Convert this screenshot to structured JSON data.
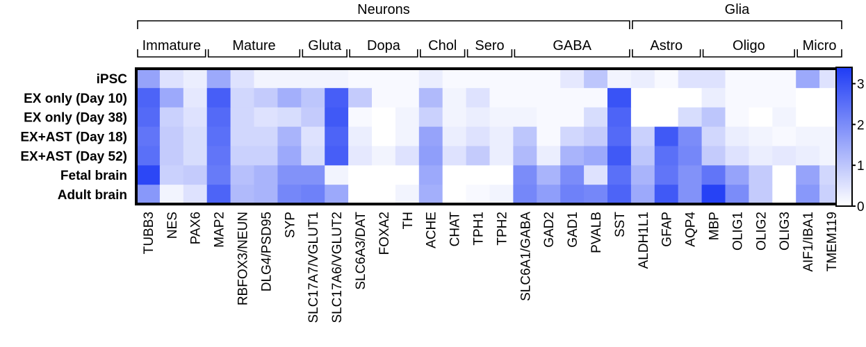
{
  "chart_data": {
    "type": "heatmap",
    "rows": [
      "iPSC",
      "EX only (Day 10)",
      "EX only (Day 38)",
      "EX+AST (Day 18)",
      "EX+AST (Day 52)",
      "Fetal brain",
      "Adult brain"
    ],
    "columns": [
      "TUBB3",
      "NES",
      "PAX6",
      "MAP2",
      "RBFOX3/NEUN",
      "DLG4/PSD95",
      "SYP",
      "SLC17A7/VGLUT1",
      "SLC17A6/VGLUT2",
      "SLC6A3/DAT",
      "FOXA2",
      "TH",
      "ACHE",
      "CHAT",
      "TPH1",
      "TPH2",
      "SLC6A1/GABA",
      "GAD2",
      "GAD1",
      "PVALB",
      "SST",
      "ALDH1L1",
      "GFAP",
      "AQP4",
      "MBP",
      "OLIG1",
      "OLIG2",
      "OLIG3",
      "AIF1/IBA1",
      "TMEM119"
    ],
    "values": [
      [
        1.6,
        0.5,
        0.3,
        1.5,
        0.5,
        0.2,
        0.2,
        0.2,
        0.2,
        0.1,
        0.1,
        0.1,
        0.3,
        0.1,
        0.1,
        0.1,
        0.1,
        0.1,
        0.4,
        1.0,
        0.2,
        0.3,
        0.1,
        0.5,
        0.5,
        0.1,
        0.1,
        0.1,
        1.5,
        0.5
      ],
      [
        2.7,
        1.5,
        0.4,
        2.8,
        0.7,
        0.9,
        1.4,
        1.0,
        2.8,
        0.9,
        0.1,
        0.1,
        1.2,
        0.2,
        0.5,
        0.1,
        0.1,
        0.1,
        0.1,
        0.1,
        3.0,
        0.0,
        0.0,
        0.0,
        0.3,
        0.1,
        0.1,
        0.1,
        0.0,
        0.0
      ],
      [
        2.6,
        0.8,
        0.5,
        2.6,
        0.7,
        0.5,
        0.6,
        0.9,
        2.9,
        0.1,
        0.0,
        0.2,
        0.8,
        0.2,
        0.3,
        0.2,
        0.2,
        0.1,
        0.1,
        0.6,
        2.7,
        0.0,
        0.0,
        0.6,
        1.0,
        0.1,
        0.0,
        0.2,
        0.0,
        0.0
      ],
      [
        2.4,
        0.9,
        0.6,
        2.5,
        0.7,
        0.7,
        1.3,
        0.5,
        2.7,
        0.3,
        0.0,
        0.2,
        1.6,
        0.3,
        0.5,
        0.3,
        1.0,
        0.1,
        0.7,
        0.9,
        2.6,
        0.8,
        2.9,
        2.0,
        0.7,
        0.3,
        0.2,
        0.1,
        0.2,
        0.2
      ],
      [
        2.5,
        0.9,
        0.6,
        2.4,
        0.8,
        0.8,
        1.5,
        0.6,
        2.8,
        0.4,
        0.2,
        0.5,
        1.7,
        0.5,
        0.9,
        0.3,
        1.2,
        0.3,
        1.3,
        1.5,
        2.9,
        1.0,
        2.5,
        2.1,
        0.9,
        0.5,
        0.3,
        0.4,
        0.3,
        0.2
      ],
      [
        3.2,
        0.8,
        0.9,
        2.3,
        1.1,
        1.3,
        1.9,
        1.9,
        0.2,
        0.0,
        0.0,
        0.0,
        1.5,
        0.0,
        0.0,
        0.0,
        2.0,
        1.3,
        2.0,
        0.5,
        2.5,
        1.3,
        2.4,
        1.9,
        2.4,
        1.6,
        0.9,
        0.0,
        1.6,
        0.7
      ],
      [
        1.8,
        0.2,
        0.5,
        2.7,
        1.2,
        1.3,
        2.1,
        2.2,
        1.5,
        0.0,
        0.0,
        0.2,
        1.4,
        0.0,
        0.1,
        0.2,
        2.1,
        1.7,
        2.2,
        2.1,
        2.7,
        1.5,
        2.9,
        1.9,
        3.3,
        2.0,
        0.9,
        0.0,
        1.8,
        0.8
      ]
    ],
    "column_groups": [
      {
        "label": "Immature",
        "start": 0,
        "end": 2
      },
      {
        "label": "Mature",
        "start": 3,
        "end": 6
      },
      {
        "label": "Gluta",
        "start": 7,
        "end": 8
      },
      {
        "label": "Dopa",
        "start": 9,
        "end": 11
      },
      {
        "label": "Chol",
        "start": 12,
        "end": 13
      },
      {
        "label": "Sero",
        "start": 14,
        "end": 15
      },
      {
        "label": "GABA",
        "start": 16,
        "end": 20
      },
      {
        "label": "Astro",
        "start": 21,
        "end": 23
      },
      {
        "label": "Oligo",
        "start": 24,
        "end": 27
      },
      {
        "label": "Micro",
        "start": 28,
        "end": 29
      }
    ],
    "super_groups": [
      {
        "label": "Neurons",
        "start": 0,
        "end": 20
      },
      {
        "label": "Glia",
        "start": 21,
        "end": 29
      }
    ],
    "colorbar": {
      "min": 0,
      "max": 3.4,
      "ticks": [
        "0",
        "1",
        "2",
        "3"
      ],
      "tick_values": [
        0,
        1,
        2,
        3
      ],
      "low_color": "#ffffff",
      "high_color": "#1f3cf5"
    }
  }
}
